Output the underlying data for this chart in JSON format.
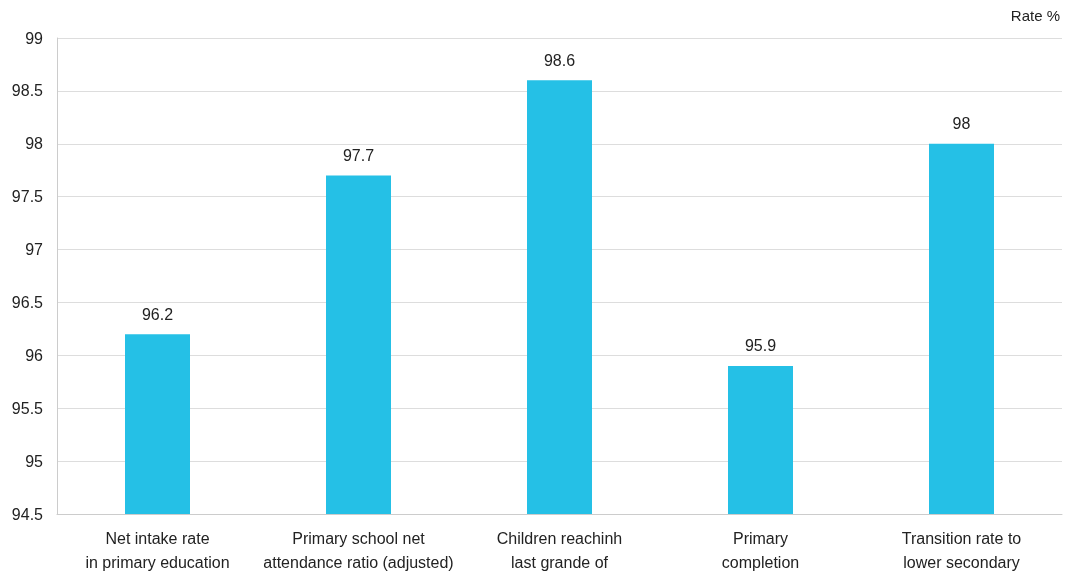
{
  "chart_data": {
    "type": "bar",
    "ylabel": "Rate %",
    "categories": [
      "Net intake rate\nin primary education",
      "Primary school net\nattendance ratio (adjusted)",
      "Children reachinh\nlast grande of",
      "Primary\ncompletion",
      "Transition rate to\nlower secondary"
    ],
    "values": [
      96.2,
      97.7,
      98.6,
      95.9,
      98
    ],
    "color": "#25c0e6",
    "ylim": [
      94.5,
      99
    ],
    "yticks": [
      94.5,
      95,
      95.5,
      96,
      96.5,
      97,
      97.5,
      98,
      98.5,
      99
    ],
    "grid": "y",
    "data_labels": true
  }
}
